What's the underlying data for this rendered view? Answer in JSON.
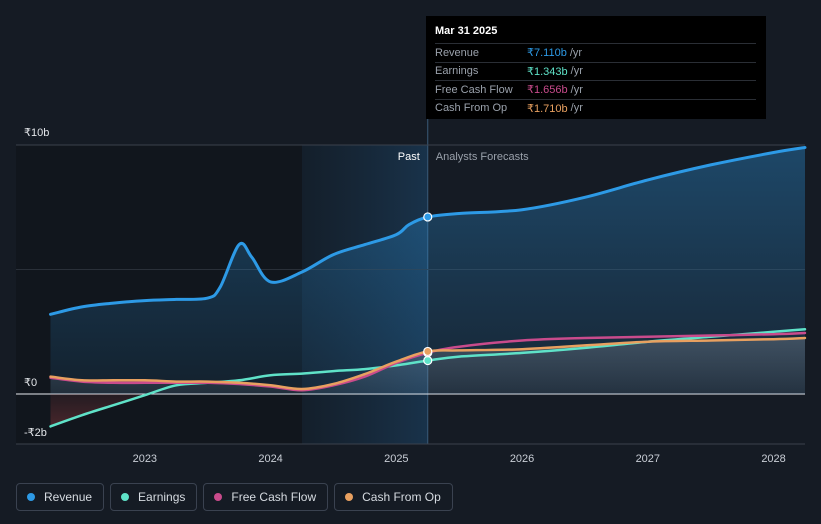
{
  "chart_data": {
    "type": "area",
    "y_tick_labels": [
      "₹10b",
      "₹0",
      "-₹2b"
    ],
    "x_tick_labels": [
      "2023",
      "2024",
      "2025",
      "2026",
      "2027",
      "2028"
    ],
    "ylim": [
      -2,
      10
    ],
    "xlim": [
      2022.23,
      2028.25
    ],
    "past_label": "Past",
    "forecast_label": "Analysts Forecasts",
    "forecast_start": 2025.25,
    "highlight_start": 2024.25,
    "series": [
      {
        "name": "Revenue",
        "color": "#2d9ae6",
        "points": [
          [
            2022.25,
            3.2
          ],
          [
            2022.5,
            3.5
          ],
          [
            2022.75,
            3.65
          ],
          [
            2023.0,
            3.75
          ],
          [
            2023.25,
            3.8
          ],
          [
            2023.5,
            3.85
          ],
          [
            2023.6,
            4.3
          ],
          [
            2023.75,
            6.0
          ],
          [
            2023.85,
            5.5
          ],
          [
            2024.0,
            4.5
          ],
          [
            2024.25,
            4.9
          ],
          [
            2024.5,
            5.6
          ],
          [
            2024.75,
            6.0
          ],
          [
            2025.0,
            6.4
          ],
          [
            2025.1,
            6.8
          ],
          [
            2025.25,
            7.11
          ],
          [
            2025.5,
            7.25
          ],
          [
            2026.0,
            7.4
          ],
          [
            2026.5,
            7.9
          ],
          [
            2027.0,
            8.6
          ],
          [
            2027.5,
            9.2
          ],
          [
            2028.0,
            9.7
          ],
          [
            2028.25,
            9.9
          ]
        ]
      },
      {
        "name": "Earnings",
        "color": "#5fe2c8",
        "points": [
          [
            2022.25,
            -1.3
          ],
          [
            2022.5,
            -0.85
          ],
          [
            2022.75,
            -0.45
          ],
          [
            2023.0,
            -0.05
          ],
          [
            2023.25,
            0.35
          ],
          [
            2023.5,
            0.45
          ],
          [
            2023.75,
            0.55
          ],
          [
            2024.0,
            0.75
          ],
          [
            2024.25,
            0.82
          ],
          [
            2024.5,
            0.92
          ],
          [
            2024.75,
            1.0
          ],
          [
            2025.0,
            1.15
          ],
          [
            2025.25,
            1.343
          ],
          [
            2025.5,
            1.5
          ],
          [
            2026.0,
            1.65
          ],
          [
            2026.5,
            1.85
          ],
          [
            2027.0,
            2.1
          ],
          [
            2027.5,
            2.3
          ],
          [
            2028.0,
            2.5
          ],
          [
            2028.25,
            2.6
          ]
        ]
      },
      {
        "name": "Free Cash Flow",
        "color": "#c94b8c",
        "points": [
          [
            2022.25,
            0.65
          ],
          [
            2022.5,
            0.5
          ],
          [
            2022.75,
            0.45
          ],
          [
            2023.0,
            0.45
          ],
          [
            2023.25,
            0.45
          ],
          [
            2023.5,
            0.45
          ],
          [
            2023.75,
            0.4
          ],
          [
            2024.0,
            0.3
          ],
          [
            2024.25,
            0.15
          ],
          [
            2024.5,
            0.35
          ],
          [
            2024.75,
            0.7
          ],
          [
            2025.0,
            1.25
          ],
          [
            2025.25,
            1.656
          ],
          [
            2025.5,
            1.9
          ],
          [
            2026.0,
            2.15
          ],
          [
            2026.5,
            2.25
          ],
          [
            2027.0,
            2.3
          ],
          [
            2027.5,
            2.35
          ],
          [
            2028.0,
            2.4
          ],
          [
            2028.25,
            2.45
          ]
        ]
      },
      {
        "name": "Cash From Op",
        "color": "#e8a060",
        "points": [
          [
            2022.25,
            0.7
          ],
          [
            2022.5,
            0.55
          ],
          [
            2022.75,
            0.55
          ],
          [
            2023.0,
            0.55
          ],
          [
            2023.25,
            0.5
          ],
          [
            2023.5,
            0.5
          ],
          [
            2023.75,
            0.45
          ],
          [
            2024.0,
            0.35
          ],
          [
            2024.25,
            0.2
          ],
          [
            2024.5,
            0.4
          ],
          [
            2024.75,
            0.8
          ],
          [
            2025.0,
            1.3
          ],
          [
            2025.25,
            1.71
          ],
          [
            2025.5,
            1.75
          ],
          [
            2026.0,
            1.8
          ],
          [
            2026.5,
            1.95
          ],
          [
            2027.0,
            2.1
          ],
          [
            2027.5,
            2.15
          ],
          [
            2028.0,
            2.2
          ],
          [
            2028.25,
            2.25
          ]
        ]
      }
    ]
  },
  "tooltip": {
    "date": "Mar 31 2025",
    "rows": [
      {
        "name": "Revenue",
        "value": "₹7.110b",
        "unit": "/yr",
        "color": "#2d9ae6"
      },
      {
        "name": "Earnings",
        "value": "₹1.343b",
        "unit": "/yr",
        "color": "#5fe2c8"
      },
      {
        "name": "Free Cash Flow",
        "value": "₹1.656b",
        "unit": "/yr",
        "color": "#c94b8c"
      },
      {
        "name": "Cash From Op",
        "value": "₹1.710b",
        "unit": "/yr",
        "color": "#e8a060"
      }
    ]
  },
  "legend": [
    {
      "label": "Revenue",
      "color": "#2d9ae6"
    },
    {
      "label": "Earnings",
      "color": "#5fe2c8"
    },
    {
      "label": "Free Cash Flow",
      "color": "#c94b8c"
    },
    {
      "label": "Cash From Op",
      "color": "#e8a060"
    }
  ]
}
